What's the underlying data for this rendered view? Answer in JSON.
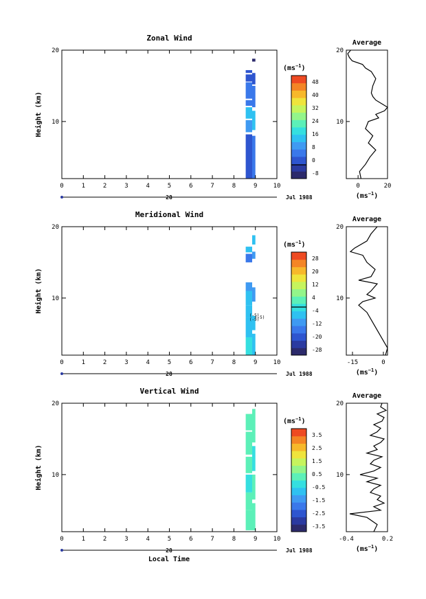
{
  "chart_data": [
    {
      "type": "heatmap",
      "title": "Zonal Wind",
      "ylabel": "Height (km)",
      "x_ticks": [
        "0",
        "1",
        "2",
        "3",
        "4",
        "5",
        "6",
        "7",
        "8",
        "9",
        "10"
      ],
      "y_ticks": [
        "20",
        "10"
      ],
      "xlim": [
        0,
        10
      ],
      "ylim": [
        2,
        20
      ],
      "day_label": "28",
      "date_label": "Jul 1988",
      "colorbar": {
        "unit": "(ms",
        "unit_exp": "−1",
        "labels": [
          "48",
          "40",
          "32",
          "24",
          "16",
          "8",
          "0",
          "-8"
        ],
        "min": -8,
        "max": 52,
        "zero_line": 0
      },
      "columns": [
        {
          "x0": 8.55,
          "x1": 8.85,
          "segments": [
            [
              2.0,
              8.2,
              4
            ],
            [
              8.5,
              10.2,
              10
            ],
            [
              10.4,
              12.0,
              14
            ],
            [
              12.2,
              13.0,
              8
            ],
            [
              13.2,
              15.5,
              6
            ],
            [
              15.6,
              16.6,
              3
            ],
            [
              16.8,
              17.2,
              2
            ]
          ]
        },
        {
          "x0": 8.85,
          "x1": 9.0,
          "segments": [
            [
              2.0,
              8.0,
              5
            ],
            [
              8.8,
              11.5,
              16
            ],
            [
              12.0,
              15.0,
              7
            ],
            [
              15.2,
              16.8,
              4
            ],
            [
              18.4,
              18.8,
              -4
            ]
          ]
        }
      ],
      "average": {
        "title": "Average",
        "xlim": [
          -8,
          20
        ],
        "x_ticks": [
          "0",
          "20"
        ],
        "x_unit": "(ms",
        "x_unit_exp": "−1",
        "y_ticks": [
          "20",
          "10"
        ],
        "y_km": [
          2,
          3,
          4,
          5,
          6,
          7,
          8,
          9,
          10,
          10.5,
          11,
          11.5,
          12,
          12.5,
          13,
          13.5,
          14,
          15,
          16,
          17,
          17.5,
          18,
          18.5,
          19,
          19.5,
          20
        ],
        "values": [
          2,
          1,
          5,
          8,
          12,
          7,
          10,
          5,
          7,
          14,
          12,
          18,
          20,
          16,
          12,
          10,
          9,
          10,
          12,
          9,
          5,
          3,
          -4,
          -6,
          -7,
          -5
        ]
      }
    },
    {
      "type": "heatmap",
      "title": "Meridional Wind",
      "ylabel": "Height (km)",
      "x_ticks": [
        "0",
        "1",
        "2",
        "3",
        "4",
        "5",
        "6",
        "7",
        "8",
        "9",
        "10"
      ],
      "y_ticks": [
        "20",
        "10"
      ],
      "xlim": [
        0,
        10
      ],
      "ylim": [
        2,
        20
      ],
      "day_label": "28",
      "date_label": "Jul 1988",
      "colorbar": {
        "unit": "(ms",
        "unit_exp": "−1",
        "labels": [
          "28",
          "20",
          "12",
          "4",
          "-4",
          "-12",
          "-20",
          "-28"
        ],
        "min": -28,
        "max": 32,
        "zero_line": 0
      },
      "columns": [
        {
          "x0": 8.55,
          "x1": 8.85,
          "segments": [
            [
              2.0,
              4.5,
              -2
            ],
            [
              4.5,
              7.2,
              -3
            ],
            [
              7.2,
              9.0,
              -5
            ],
            [
              9.0,
              11.0,
              -6
            ],
            [
              11.0,
              12.2,
              -10
            ],
            [
              15.0,
              16.2,
              -12
            ],
            [
              16.4,
              17.2,
              -6
            ]
          ]
        },
        {
          "x0": 8.85,
          "x1": 9.0,
          "segments": [
            [
              2.0,
              5.0,
              -3
            ],
            [
              5.5,
              7.5,
              -4
            ],
            [
              9.5,
              11.5,
              -8
            ],
            [
              15.5,
              16.5,
              -7
            ],
            [
              17.5,
              18.8,
              -5
            ]
          ]
        }
      ],
      "contours": [
        "(-5)",
        "(-5)",
        "(-5)"
      ],
      "average": {
        "title": "Average",
        "xlim": [
          -18,
          2
        ],
        "x_ticks": [
          "-15",
          "0"
        ],
        "x_unit": "(ms",
        "x_unit_exp": "−1",
        "y_ticks": [
          "20",
          "10"
        ],
        "y_km": [
          2,
          3,
          4,
          5,
          6,
          7,
          8,
          9,
          9.5,
          10,
          10.5,
          11,
          12,
          12.5,
          13,
          14,
          15,
          16,
          16.5,
          17,
          18,
          19,
          20
        ],
        "values": [
          1,
          2,
          0,
          -2,
          -4,
          -6,
          -8,
          -12,
          -10,
          -4,
          -8,
          -6,
          -3,
          -12,
          -6,
          -4,
          -8,
          -10,
          -16,
          -14,
          -8,
          -6,
          -3
        ]
      }
    },
    {
      "type": "heatmap",
      "title": "Vertical Wind",
      "ylabel": "Height (km)",
      "x_ticks": [
        "0",
        "1",
        "2",
        "3",
        "4",
        "5",
        "6",
        "7",
        "8",
        "9",
        "10"
      ],
      "y_ticks": [
        "20",
        "10"
      ],
      "xlim": [
        0,
        10
      ],
      "ylim": [
        2,
        20
      ],
      "day_label": "28",
      "date_label": "Jul 1988",
      "xlabel": "Local Time",
      "colorbar": {
        "unit": "(ms",
        "unit_exp": "−1",
        "labels": [
          "3.5",
          "2.5",
          "1.5",
          "0.5",
          "-0.5",
          "-1.5",
          "-2.5",
          "-3.5"
        ],
        "min": -4,
        "max": 4
      },
      "columns": [
        {
          "x0": 8.55,
          "x1": 8.85,
          "segments": [
            [
              2.2,
              5.0,
              0.1
            ],
            [
              5.0,
              7.5,
              0.0
            ],
            [
              7.5,
              10.0,
              -0.1
            ],
            [
              10.2,
              12.5,
              0.0
            ],
            [
              12.8,
              16.0,
              0.1
            ],
            [
              16.2,
              18.5,
              0.0
            ]
          ]
        },
        {
          "x0": 8.85,
          "x1": 9.0,
          "segments": [
            [
              2.2,
              6.0,
              0.0
            ],
            [
              6.5,
              10.0,
              0.1
            ],
            [
              10.5,
              14.0,
              -0.1
            ],
            [
              14.5,
              19.2,
              0.0
            ]
          ]
        }
      ],
      "average": {
        "title": "Average",
        "xlim": [
          -0.4,
          0.2
        ],
        "x_ticks": [
          "-0.4",
          "0.2"
        ],
        "x_unit": "(ms",
        "x_unit_exp": "−1",
        "y_ticks": [
          "20",
          "10"
        ],
        "y_km": [
          2,
          3,
          4,
          4.5,
          5,
          5.5,
          6,
          6.5,
          7,
          7.5,
          8,
          8.5,
          9,
          9.5,
          10,
          10.5,
          11,
          11.5,
          12,
          12.5,
          13,
          13.5,
          14,
          14.5,
          15,
          15.5,
          16,
          16.5,
          17,
          17.5,
          18,
          18.5,
          19,
          19.5,
          20
        ],
        "values": [
          0.0,
          0.05,
          -0.1,
          -0.35,
          0.1,
          0.0,
          0.15,
          0.05,
          0.1,
          -0.05,
          0.0,
          0.1,
          -0.1,
          0.05,
          -0.2,
          0.0,
          0.1,
          -0.05,
          0.0,
          0.12,
          -0.1,
          0.05,
          0.0,
          0.1,
          0.15,
          -0.05,
          0.05,
          0.1,
          0.0,
          0.12,
          0.15,
          0.05,
          0.18,
          0.1,
          0.12
        ]
      }
    }
  ]
}
